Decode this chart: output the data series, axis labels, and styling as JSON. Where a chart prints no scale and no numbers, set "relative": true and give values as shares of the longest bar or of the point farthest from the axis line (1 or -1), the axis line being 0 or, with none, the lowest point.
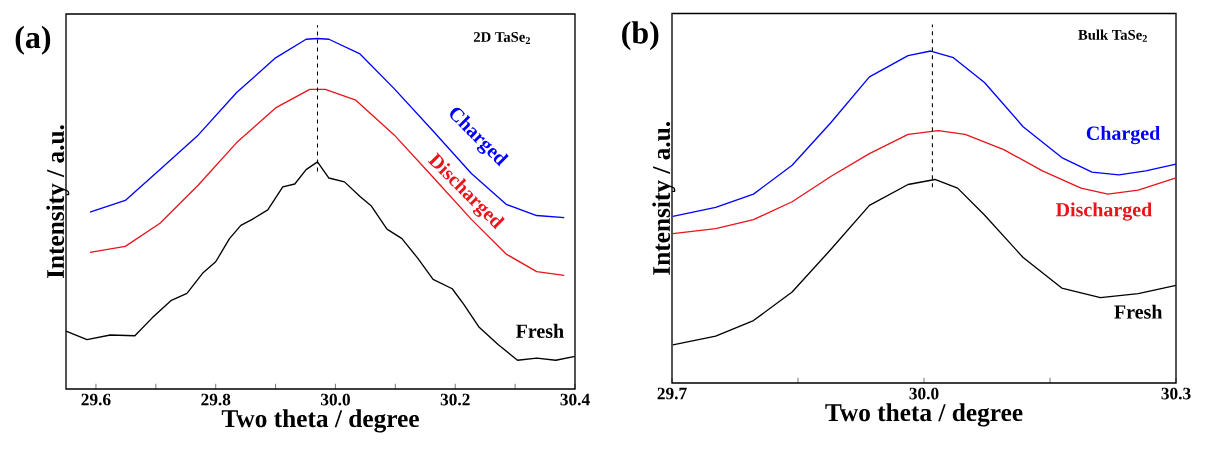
{
  "chart_data": [
    {
      "type": "line",
      "title": "(a)",
      "xlabel": "Two theta / degree",
      "ylabel": "Intensity / a.u.",
      "annotations": [
        "2D TaSe$_{2}$"
      ],
      "relative": true,
      "xlim": [
        29.55,
        30.4
      ],
      "xticks": [
        29.6,
        {
          "value": 29.7,
          "label": null
        },
        29.8,
        {
          "value": 29.9,
          "label": null
        },
        {
          "value": 30.0,
          "label": "30.0"
        },
        {
          "value": 30.1,
          "label": null
        },
        30.2,
        {
          "value": 30.3,
          "label": null
        },
        30.4
      ],
      "ref_lines": [
        {
          "axis": "x",
          "value": 29.97,
          "line_style": "dashed",
          "color": "#000000"
        }
      ],
      "series": [
        {
          "name": "Fresh",
          "color": "#000000",
          "x": [
            29.55,
            29.585,
            29.624,
            29.665,
            29.694,
            29.726,
            29.752,
            29.778,
            29.8,
            29.823,
            29.842,
            29.861,
            29.887,
            29.912,
            29.932,
            29.951,
            29.97,
            29.989,
            30.015,
            30.041,
            30.06,
            30.086,
            30.111,
            30.137,
            30.163,
            30.195,
            30.214,
            30.24,
            30.272,
            30.304,
            30.336,
            30.368,
            30.4
          ],
          "values": [
            0.165,
            0.141,
            0.154,
            0.152,
            0.203,
            0.253,
            0.273,
            0.33,
            0.363,
            0.429,
            0.467,
            0.484,
            0.511,
            0.577,
            0.585,
            0.626,
            0.648,
            0.602,
            0.591,
            0.549,
            0.522,
            0.456,
            0.429,
            0.374,
            0.313,
            0.286,
            0.242,
            0.176,
            0.126,
            0.082,
            0.088,
            0.082,
            0.093
          ]
        },
        {
          "name": "Discharged",
          "color": "#e8151b",
          "x": [
            29.59,
            29.649,
            29.707,
            29.771,
            29.835,
            29.9,
            29.957,
            29.983,
            30.034,
            30.098,
            30.163,
            30.227,
            30.285,
            30.336,
            30.382
          ],
          "values": [
            0.39,
            0.407,
            0.473,
            0.582,
            0.703,
            0.802,
            0.855,
            0.855,
            0.824,
            0.725,
            0.604,
            0.484,
            0.385,
            0.335,
            0.324
          ]
        },
        {
          "name": "Charged",
          "color": "#0000ff",
          "x": [
            29.59,
            29.649,
            29.707,
            29.771,
            29.835,
            29.9,
            29.951,
            29.97,
            29.989,
            30.041,
            30.098,
            30.163,
            30.227,
            30.285,
            30.336,
            30.382
          ],
          "values": [
            0.505,
            0.538,
            0.626,
            0.725,
            0.846,
            0.945,
            0.998,
            1.0,
            0.998,
            0.956,
            0.857,
            0.736,
            0.615,
            0.527,
            0.495,
            0.489
          ]
        }
      ]
    },
    {
      "type": "line",
      "title": "(b)",
      "xlabel": "Two theta / degree",
      "ylabel": "Intensity / a.u.",
      "annotations": [
        "Bulk TaSe$_{2}$"
      ],
      "relative": true,
      "xlim": [
        29.7,
        30.3
      ],
      "xticks": [
        29.7,
        {
          "value": 29.85,
          "label": null
        },
        {
          "value": 30.0,
          "label": "30.0"
        },
        {
          "value": 30.15,
          "label": null
        },
        30.3
      ],
      "ref_lines": [
        {
          "axis": "x",
          "value": 30.01,
          "line_style": "dashed",
          "color": "#000000"
        }
      ],
      "series": [
        {
          "name": "Fresh",
          "color": "#000000",
          "x": [
            29.701,
            29.752,
            29.797,
            29.843,
            29.889,
            29.935,
            29.981,
            30.013,
            30.04,
            30.072,
            30.118,
            30.164,
            30.21,
            30.255,
            30.3
          ],
          "values": [
            0.115,
            0.141,
            0.188,
            0.274,
            0.402,
            0.535,
            0.598,
            0.613,
            0.587,
            0.506,
            0.378,
            0.286,
            0.257,
            0.269,
            0.294
          ]
        },
        {
          "name": "Discharged",
          "color": "#e8151b",
          "x": [
            29.701,
            29.752,
            29.797,
            29.843,
            29.889,
            29.935,
            29.981,
            30.017,
            30.049,
            30.095,
            30.141,
            30.187,
            30.219,
            30.255,
            30.3
          ],
          "values": [
            0.45,
            0.465,
            0.492,
            0.546,
            0.622,
            0.691,
            0.749,
            0.76,
            0.749,
            0.703,
            0.639,
            0.587,
            0.569,
            0.581,
            0.618
          ]
        },
        {
          "name": "Charged",
          "color": "#0000ff",
          "x": [
            29.701,
            29.752,
            29.797,
            29.843,
            29.889,
            29.935,
            29.981,
            30.008,
            30.035,
            30.072,
            30.118,
            30.164,
            30.2,
            30.232,
            30.264,
            30.3
          ],
          "values": [
            0.502,
            0.529,
            0.569,
            0.656,
            0.784,
            0.922,
            0.986,
            1.0,
            0.98,
            0.905,
            0.772,
            0.679,
            0.635,
            0.627,
            0.639,
            0.659
          ]
        }
      ]
    }
  ]
}
